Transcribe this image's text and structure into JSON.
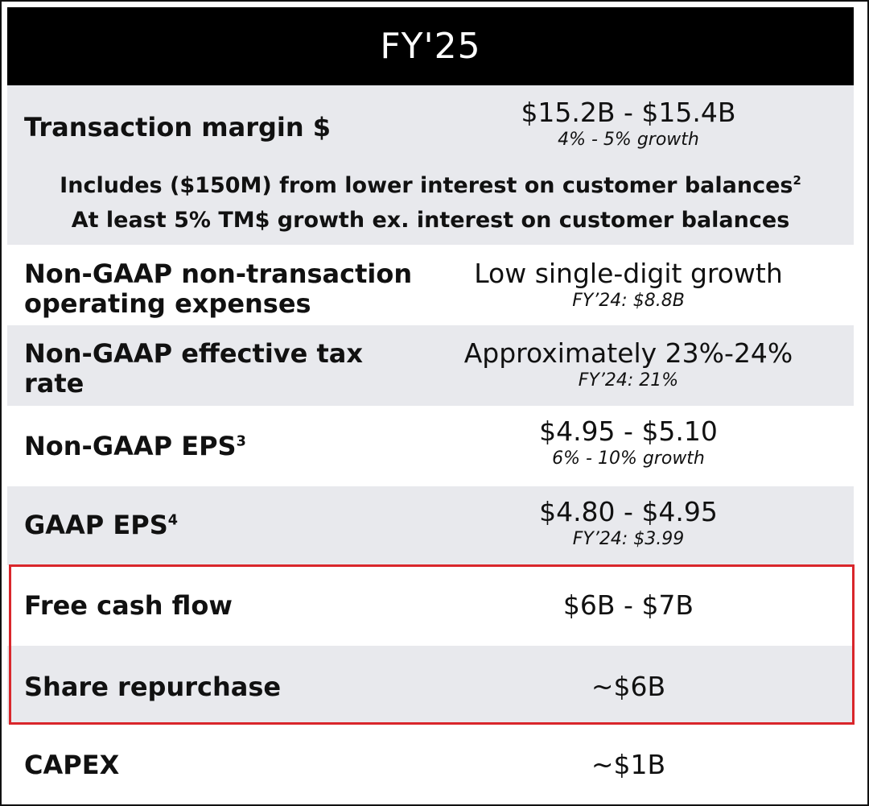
{
  "header": {
    "title": "FY'25"
  },
  "rows": {
    "transaction_margin": {
      "label": "Transaction margin $",
      "value": "$15.2B - $15.4B",
      "sub": "4% - 5% growth",
      "note1": "Includes ($150M) from lower interest on customer balances",
      "note1_sup": "2",
      "note2": "At least 5% TM$ growth ex. interest on customer balances"
    },
    "opex": {
      "label_line1": "Non-GAAP non-transaction",
      "label_line2": "operating expenses",
      "value": "Low single-digit growth",
      "sub": "FY’24: $8.8B"
    },
    "tax": {
      "label_line1": "Non-GAAP effective tax",
      "label_line2": "rate",
      "value": "Approximately 23%-24%",
      "sub": "FY’24: 21%"
    },
    "nongaap_eps": {
      "label": "Non-GAAP EPS",
      "label_sup": "3",
      "value": "$4.95 - $5.10",
      "sub": "6% - 10% growth"
    },
    "gaap_eps": {
      "label": "GAAP EPS",
      "label_sup": "4",
      "value": "$4.80 - $4.95",
      "sub": "FY’24: $3.99"
    },
    "fcf": {
      "label": "Free cash flow",
      "value": "$6B - $7B"
    },
    "buyback": {
      "label": "Share repurchase",
      "value": "~$6B"
    },
    "capex": {
      "label": "CAPEX",
      "value": "~$1B"
    }
  },
  "colors": {
    "header_bg": "#000000",
    "row_shade": "#e8e9ed",
    "highlight_border": "#d9262b"
  }
}
